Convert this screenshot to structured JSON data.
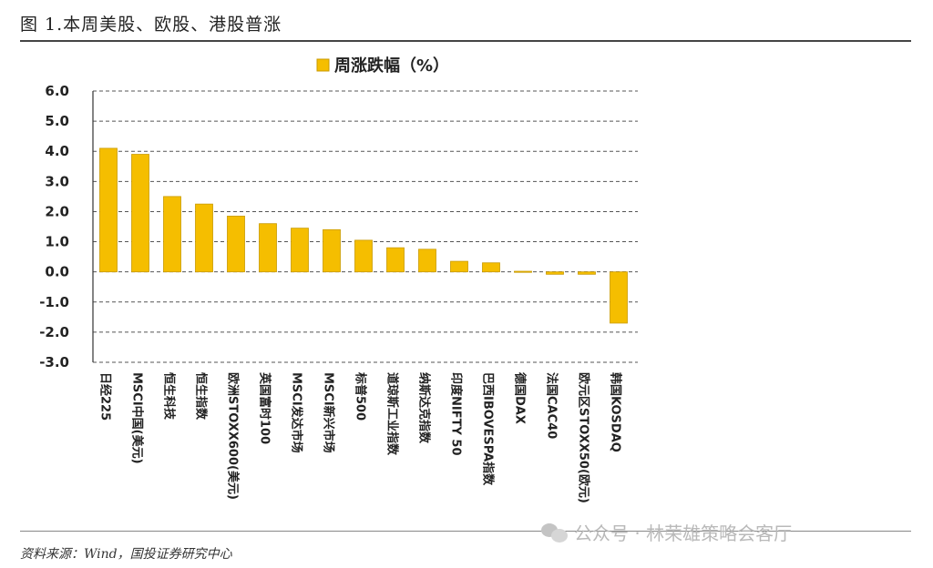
{
  "figure": {
    "title": "图 1.本周美股、欧股、港股普涨",
    "source": "资料来源：Wind，国投证券研究中心",
    "watermark": "公众号 · 林荣雄策略会客厅"
  },
  "colors": {
    "bar": "#F5BE00",
    "bar_edge": "#C99A00",
    "grid": "#555555"
  },
  "chart_data": {
    "type": "bar",
    "title": "",
    "legend": [
      "周涨跌幅（%）"
    ],
    "legend_position": "top-center",
    "categories": [
      "日经225",
      "MSCI中国(美元)",
      "恒生科技",
      "恒生指数",
      "欧洲STOXX600(美元)",
      "英国富时100",
      "MSCI发达市场",
      "MSCI新兴市场",
      "标普500",
      "道琼斯工业指数",
      "纳斯达克指数",
      "印度NIFTY 50",
      "巴西IBOVESPA指数",
      "德国DAX",
      "法国CAC40",
      "欧元区STOXX50(欧元)",
      "韩国KOSDAQ"
    ],
    "series": [
      {
        "name": "周涨跌幅（%）",
        "values": [
          4.1,
          3.9,
          2.5,
          2.25,
          1.85,
          1.6,
          1.45,
          1.4,
          1.05,
          0.8,
          0.75,
          0.35,
          0.3,
          0.02,
          -0.08,
          -0.08,
          -1.7
        ]
      }
    ],
    "yticks": [
      "6.0",
      "5.0",
      "4.0",
      "3.0",
      "2.0",
      "1.0",
      "0.0",
      "-1.0",
      "-2.0",
      "-3.0"
    ],
    "ylim": [
      -3,
      6
    ],
    "grid": "dashed-horizontal",
    "xlabel": "",
    "ylabel": ""
  }
}
